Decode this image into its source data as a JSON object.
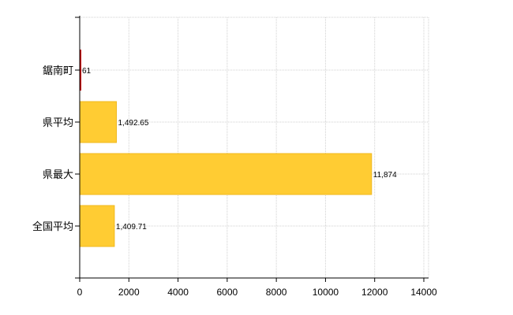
{
  "chart_data": {
    "type": "bar",
    "orientation": "horizontal",
    "categories": [
      "鋸南町",
      "県平均",
      "県最大",
      "全国平均"
    ],
    "values": [
      61,
      1492.65,
      11874,
      1409.71
    ],
    "value_labels": [
      "61",
      "1,492.65",
      "11,874",
      "1,409.71"
    ],
    "xlim": [
      0,
      14000
    ],
    "x_ticks": [
      "0",
      "2000",
      "4000",
      "6000",
      "8000",
      "10000",
      "12000",
      "14000"
    ],
    "grid": "on",
    "legend": "none",
    "colors": {
      "bar": "#FFCC33",
      "bar_border": "#F0B81E",
      "highlight_bar": "#CC0000",
      "grid": "#D0D0D0",
      "axis": "#000000"
    },
    "highlight_index": 0
  }
}
